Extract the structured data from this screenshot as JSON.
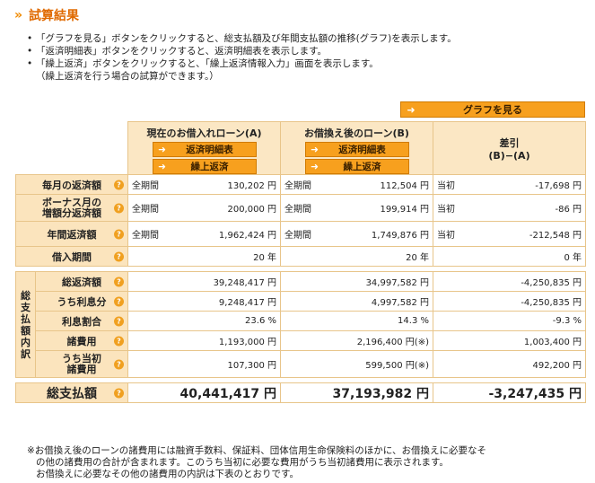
{
  "header": {
    "title_chevron": "»",
    "title": "試算結果"
  },
  "notes": [
    "「グラフを見る」ボタンをクリックすると、総支払額及び年間支払額の推移(グラフ)を表示します。",
    "「返済明細表」ボタンをクリックすると、返済明細表を表示します。",
    "「繰上返済」ボタンをクリックすると、「繰上返済情報入力」画面を表示します。"
  ],
  "notes_sub": "（繰上返済を行う場合の試算ができます。）",
  "graph_button": {
    "arrow": "➜",
    "label": "グラフを見る"
  },
  "columns": {
    "a": {
      "title": "現在のお借入れローン(A)",
      "btn1": "返済明細表",
      "btn2": "繰上返済"
    },
    "b": {
      "title": "お借換え後のローン(B)",
      "btn1": "返済明細表",
      "btn2": "繰上返済"
    },
    "diff": {
      "title": "差引",
      "sub": "(B)−(A)"
    },
    "arrow": "➜"
  },
  "rows": {
    "monthly": {
      "label": "毎月の返済額",
      "a_p": "全期間",
      "a_v": "130,202 円",
      "b_p": "全期間",
      "b_v": "112,504 円",
      "d_p": "当初",
      "d_v": "-17,698 円"
    },
    "bonus": {
      "label1": "ボーナス月の",
      "label2": "増額分返済額",
      "a_p": "全期間",
      "a_v": "200,000 円",
      "b_p": "全期間",
      "b_v": "199,914 円",
      "d_p": "当初",
      "d_v": "-86 円"
    },
    "annual": {
      "label": "年間返済額",
      "a_p": "全期間",
      "a_v": "1,962,424 円",
      "b_p": "全期間",
      "b_v": "1,749,876 円",
      "d_p": "当初",
      "d_v": "-212,548 円"
    },
    "period": {
      "label": "借入期間",
      "a_v": "20 年",
      "b_v": "20 年",
      "d_v": "0 年"
    }
  },
  "breakdown": {
    "group_label": [
      "総",
      "支",
      "払",
      "額",
      "内",
      "訳"
    ],
    "total_repay": {
      "label": "総返済額",
      "a": "39,248,417 円",
      "b": "34,997,582 円",
      "d": "-4,250,835 円"
    },
    "interest": {
      "label": "うち利息分",
      "a": "9,248,417 円",
      "b": "4,997,582 円",
      "d": "-4,250,835 円"
    },
    "ratio": {
      "label": "利息割合",
      "a": "23.6 %",
      "b": "14.3 %",
      "d": "-9.3 %"
    },
    "fees": {
      "label": "諸費用",
      "a": "1,193,000 円",
      "b": "2,196,400 円(※)",
      "d": "1,003,400 円"
    },
    "initial_fees": {
      "label1": "うち当初",
      "label2": "諸費用",
      "a": "107,300 円",
      "b": "599,500 円(※)",
      "d": "492,200 円"
    }
  },
  "total": {
    "label": "総支払額",
    "a": "40,441,417 円",
    "b": "37,193,982 円",
    "d": "-3,247,435 円"
  },
  "footnote": [
    "※お借換え後のローンの諸費用には融資手数料、保証料、団体信用生命保険料のほかに、お借換えに必要なそ",
    "の他の諸費用の合計が含まれます。このうち当初に必要な費用がうち当初諸費用に表示されます。",
    "お借換えに必要なその他の諸費用の内訳は下表のとおりです。"
  ],
  "help_icon": "?"
}
